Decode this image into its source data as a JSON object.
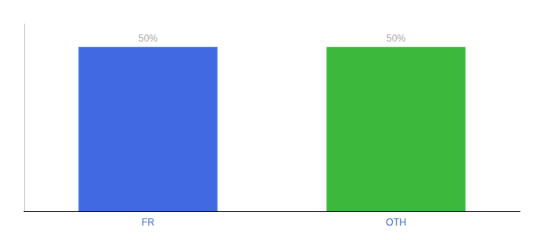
{
  "chart_data": {
    "type": "bar",
    "categories": [
      "FR",
      "OTH"
    ],
    "values": [
      50,
      50
    ],
    "value_labels": [
      "50%",
      "50%"
    ],
    "colors": [
      "#4169E1",
      "#3CB83C"
    ],
    "ylim": [
      0,
      57
    ],
    "data_labels": true,
    "tick_labels": "x",
    "grid": false
  }
}
